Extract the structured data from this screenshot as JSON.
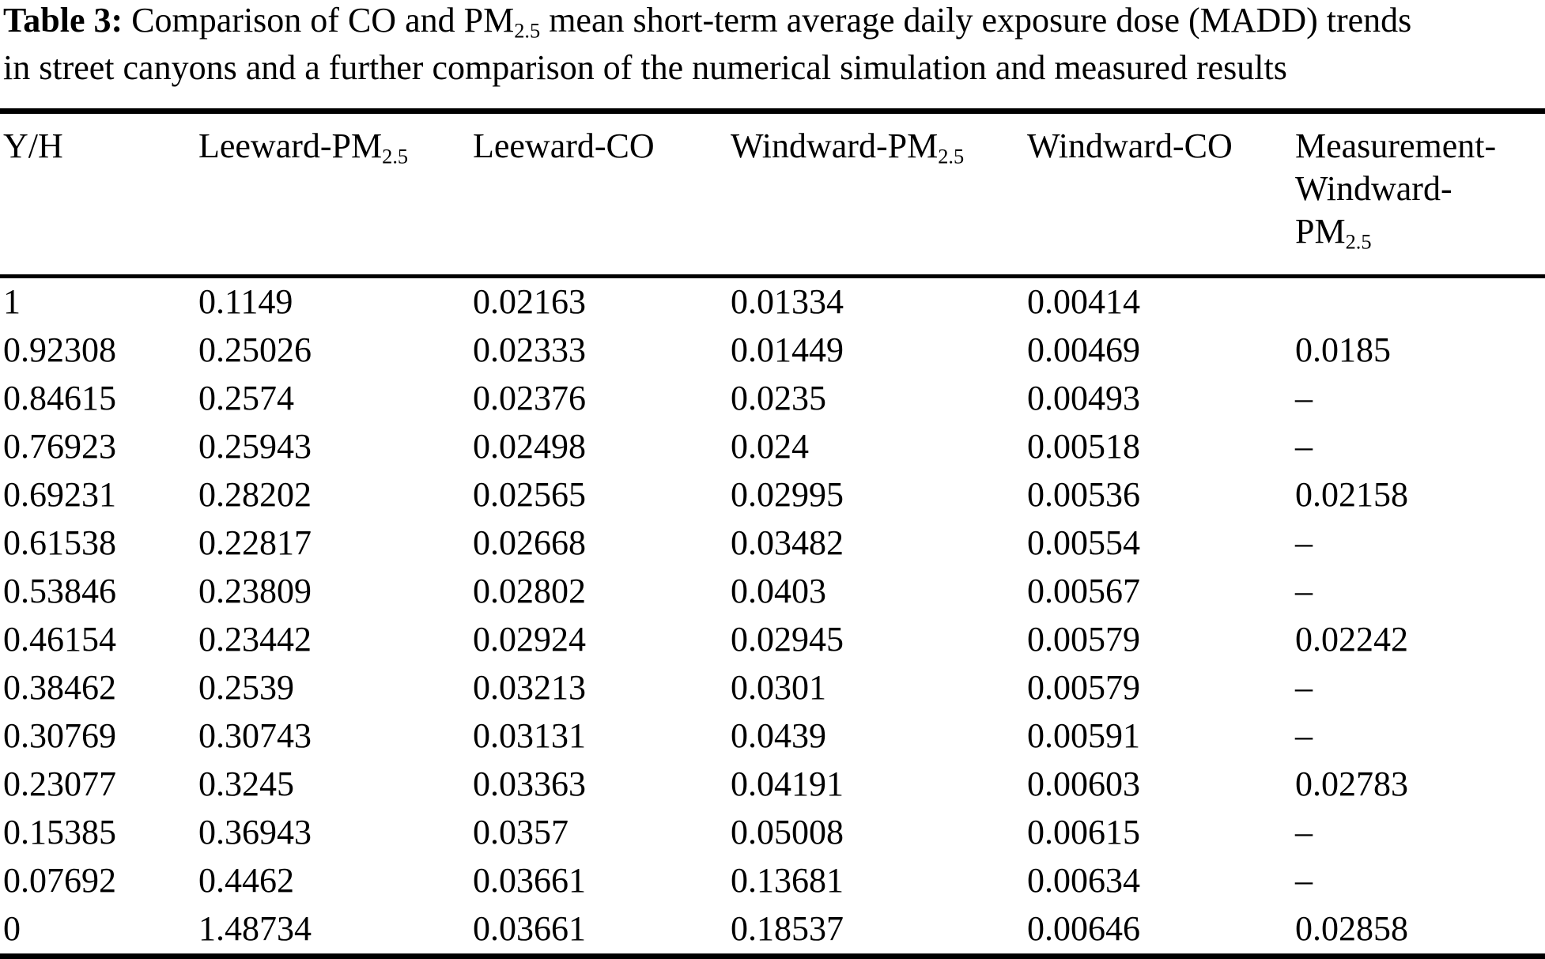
{
  "title": {
    "label": "Table 3:",
    "line1_part1": "Comparison of CO and PM",
    "line1_sub": "2.5",
    "line1_part2": "mean short-term average daily exposure dose (MADD) trends",
    "line2": "in street canyons and a further comparison of the numerical simulation and measured results"
  },
  "table": {
    "columns": [
      {
        "text": "Y/H"
      },
      {
        "text": "Leeward-PM",
        "sub": "2.5"
      },
      {
        "text": "Leeward-CO"
      },
      {
        "text": "Windward-PM",
        "sub": "2.5"
      },
      {
        "text": "Windward-CO"
      },
      {
        "line1": "Measurement-",
        "line2": "Windward-",
        "line3": "PM",
        "sub": "2.5"
      }
    ],
    "rows": [
      [
        "1",
        "0.1149",
        "0.02163",
        "0.01334",
        "0.00414",
        ""
      ],
      [
        "0.92308",
        "0.25026",
        "0.02333",
        "0.01449",
        "0.00469",
        "0.0185"
      ],
      [
        "0.84615",
        "0.2574",
        "0.02376",
        "0.0235",
        "0.00493",
        "–"
      ],
      [
        "0.76923",
        "0.25943",
        "0.02498",
        "0.024",
        "0.00518",
        "–"
      ],
      [
        "0.69231",
        "0.28202",
        "0.02565",
        "0.02995",
        "0.00536",
        "0.02158"
      ],
      [
        "0.61538",
        "0.22817",
        "0.02668",
        "0.03482",
        "0.00554",
        "–"
      ],
      [
        "0.53846",
        "0.23809",
        "0.02802",
        "0.0403",
        "0.00567",
        "–"
      ],
      [
        "0.46154",
        "0.23442",
        "0.02924",
        "0.02945",
        "0.00579",
        "0.02242"
      ],
      [
        "0.38462",
        "0.2539",
        "0.03213",
        "0.0301",
        "0.00579",
        "–"
      ],
      [
        "0.30769",
        "0.30743",
        "0.03131",
        "0.0439",
        "0.00591",
        "–"
      ],
      [
        "0.23077",
        "0.3245",
        "0.03363",
        "0.04191",
        "0.00603",
        "0.02783"
      ],
      [
        "0.15385",
        "0.36943",
        "0.0357",
        "0.05008",
        "0.00615",
        "–"
      ],
      [
        "0.07692",
        "0.4462",
        "0.03661",
        "0.13681",
        "0.00634",
        "–"
      ],
      [
        "0",
        "1.48734",
        "0.03661",
        "0.18537",
        "0.00646",
        "0.02858"
      ]
    ]
  }
}
